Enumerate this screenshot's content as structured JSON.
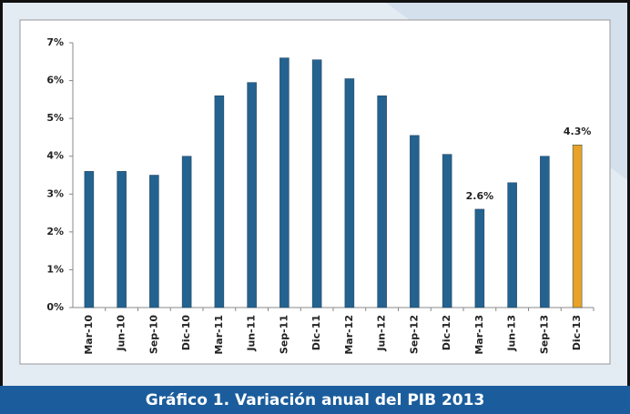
{
  "chart_data": {
    "type": "bar",
    "caption": "Gráfico 1. Variación anual del PIB 2013",
    "categories": [
      "Mar-10",
      "Jun-10",
      "Sep-10",
      "Dic-10",
      "Mar-11",
      "Jun-11",
      "Sep-11",
      "Dic-11",
      "Mar-12",
      "Jun-12",
      "Sep-12",
      "Dic-12",
      "Mar-13",
      "Jun-13",
      "Sep-13",
      "Dic-13"
    ],
    "values": [
      3.6,
      3.6,
      3.5,
      4.0,
      5.6,
      5.95,
      6.6,
      6.55,
      6.05,
      5.6,
      4.55,
      4.05,
      2.6,
      3.3,
      4.0,
      4.3
    ],
    "value_labels": [
      null,
      null,
      null,
      null,
      null,
      null,
      null,
      null,
      null,
      null,
      null,
      null,
      "2.6%",
      null,
      null,
      "4.3%"
    ],
    "colors": [
      "#24628f",
      "#24628f",
      "#24628f",
      "#24628f",
      "#24628f",
      "#24628f",
      "#24628f",
      "#24628f",
      "#24628f",
      "#24628f",
      "#24628f",
      "#24628f",
      "#24628f",
      "#24628f",
      "#24628f",
      "#e8a326"
    ],
    "ylim": [
      0,
      7
    ],
    "yticks": [
      {
        "value": 0,
        "label": "0%"
      },
      {
        "value": 1,
        "label": "1%"
      },
      {
        "value": 2,
        "label": "2%"
      },
      {
        "value": 3,
        "label": "3%"
      },
      {
        "value": 4,
        "label": "4%"
      },
      {
        "value": 5,
        "label": "5%"
      },
      {
        "value": 6,
        "label": "6%"
      },
      {
        "value": 7,
        "label": "7%"
      }
    ],
    "grid": false
  }
}
